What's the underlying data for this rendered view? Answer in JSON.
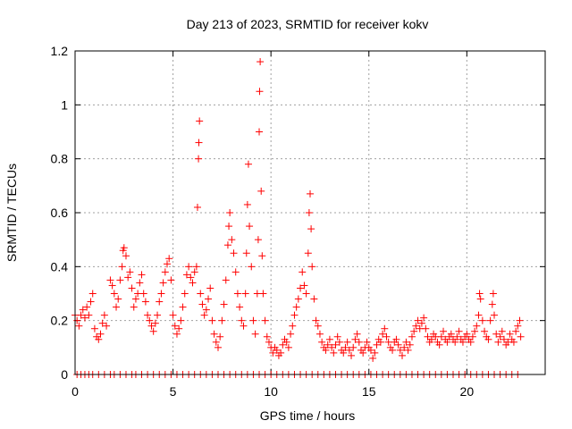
{
  "chart_data": {
    "type": "scatter",
    "title": "Day 213 of 2023, SRMTID for receiver kokv",
    "xlabel": "GPS time / hours",
    "ylabel": "SRMTID / TECUs",
    "xlim": [
      0,
      24
    ],
    "ylim": [
      0,
      1.2
    ],
    "xticks": [
      0,
      5,
      10,
      15,
      20
    ],
    "yticks": [
      0,
      0.2,
      0.4,
      0.6,
      0.8,
      1.0,
      1.2
    ],
    "xtick_labels": [
      "0",
      "5",
      "10",
      "15",
      "20"
    ],
    "ytick_labels": [
      "0",
      "0.2",
      "0.4",
      "0.6",
      "0.8",
      "1",
      "1.2"
    ],
    "grid": true,
    "marker": "+",
    "series": [
      {
        "name": "SRMTID",
        "color": "#ff0000",
        "points": [
          [
            0.0,
            0.22
          ],
          [
            0.1,
            0.2
          ],
          [
            0.2,
            0.18
          ],
          [
            0.3,
            0.22
          ],
          [
            0.4,
            0.24
          ],
          [
            0.5,
            0.21
          ],
          [
            0.6,
            0.25
          ],
          [
            0.7,
            0.22
          ],
          [
            0.8,
            0.27
          ],
          [
            0.9,
            0.3
          ],
          [
            1.0,
            0.17
          ],
          [
            1.1,
            0.14
          ],
          [
            1.2,
            0.13
          ],
          [
            1.3,
            0.15
          ],
          [
            1.4,
            0.19
          ],
          [
            1.5,
            0.22
          ],
          [
            1.6,
            0.18
          ],
          [
            1.8,
            0.35
          ],
          [
            1.9,
            0.33
          ],
          [
            2.0,
            0.3
          ],
          [
            2.1,
            0.25
          ],
          [
            2.2,
            0.28
          ],
          [
            2.3,
            0.35
          ],
          [
            2.4,
            0.4
          ],
          [
            2.45,
            0.46
          ],
          [
            2.5,
            0.47
          ],
          [
            2.6,
            0.44
          ],
          [
            2.7,
            0.36
          ],
          [
            2.8,
            0.38
          ],
          [
            2.9,
            0.32
          ],
          [
            3.0,
            0.25
          ],
          [
            3.1,
            0.28
          ],
          [
            3.2,
            0.3
          ],
          [
            3.3,
            0.34
          ],
          [
            3.4,
            0.37
          ],
          [
            3.5,
            0.3
          ],
          [
            3.6,
            0.27
          ],
          [
            3.7,
            0.22
          ],
          [
            3.8,
            0.2
          ],
          [
            3.9,
            0.18
          ],
          [
            4.0,
            0.16
          ],
          [
            4.1,
            0.19
          ],
          [
            4.2,
            0.22
          ],
          [
            4.3,
            0.27
          ],
          [
            4.4,
            0.3
          ],
          [
            4.5,
            0.34
          ],
          [
            4.6,
            0.38
          ],
          [
            4.7,
            0.41
          ],
          [
            4.8,
            0.43
          ],
          [
            4.9,
            0.35
          ],
          [
            5.0,
            0.22
          ],
          [
            5.1,
            0.18
          ],
          [
            5.2,
            0.15
          ],
          [
            5.3,
            0.17
          ],
          [
            5.4,
            0.2
          ],
          [
            5.5,
            0.25
          ],
          [
            5.6,
            0.3
          ],
          [
            5.7,
            0.37
          ],
          [
            5.8,
            0.4
          ],
          [
            5.9,
            0.36
          ],
          [
            6.0,
            0.34
          ],
          [
            6.1,
            0.38
          ],
          [
            6.2,
            0.4
          ],
          [
            6.25,
            0.62
          ],
          [
            6.3,
            0.8
          ],
          [
            6.32,
            0.86
          ],
          [
            6.35,
            0.94
          ],
          [
            6.4,
            0.3
          ],
          [
            6.5,
            0.26
          ],
          [
            6.6,
            0.22
          ],
          [
            6.7,
            0.24
          ],
          [
            6.8,
            0.28
          ],
          [
            6.9,
            0.32
          ],
          [
            7.0,
            0.2
          ],
          [
            7.1,
            0.15
          ],
          [
            7.2,
            0.12
          ],
          [
            7.3,
            0.1
          ],
          [
            7.4,
            0.14
          ],
          [
            7.5,
            0.2
          ],
          [
            7.6,
            0.26
          ],
          [
            7.7,
            0.35
          ],
          [
            7.8,
            0.48
          ],
          [
            7.85,
            0.55
          ],
          [
            7.9,
            0.6
          ],
          [
            8.0,
            0.5
          ],
          [
            8.1,
            0.45
          ],
          [
            8.2,
            0.38
          ],
          [
            8.3,
            0.3
          ],
          [
            8.4,
            0.25
          ],
          [
            8.5,
            0.2
          ],
          [
            8.6,
            0.18
          ],
          [
            8.7,
            0.3
          ],
          [
            8.75,
            0.45
          ],
          [
            8.8,
            0.63
          ],
          [
            8.85,
            0.78
          ],
          [
            8.9,
            0.55
          ],
          [
            9.0,
            0.4
          ],
          [
            9.1,
            0.2
          ],
          [
            9.2,
            0.15
          ],
          [
            9.3,
            0.3
          ],
          [
            9.35,
            0.5
          ],
          [
            9.4,
            0.9
          ],
          [
            9.42,
            1.05
          ],
          [
            9.45,
            1.16
          ],
          [
            9.5,
            0.68
          ],
          [
            9.55,
            0.44
          ],
          [
            9.6,
            0.3
          ],
          [
            9.7,
            0.2
          ],
          [
            9.8,
            0.14
          ],
          [
            9.9,
            0.12
          ],
          [
            10.0,
            0.1
          ],
          [
            10.1,
            0.08
          ],
          [
            10.2,
            0.1
          ],
          [
            10.3,
            0.09
          ],
          [
            10.4,
            0.07
          ],
          [
            10.5,
            0.08
          ],
          [
            10.6,
            0.11
          ],
          [
            10.7,
            0.13
          ],
          [
            10.8,
            0.12
          ],
          [
            10.9,
            0.1
          ],
          [
            11.0,
            0.15
          ],
          [
            11.1,
            0.18
          ],
          [
            11.2,
            0.22
          ],
          [
            11.3,
            0.25
          ],
          [
            11.4,
            0.28
          ],
          [
            11.5,
            0.32
          ],
          [
            11.6,
            0.38
          ],
          [
            11.7,
            0.33
          ],
          [
            11.8,
            0.3
          ],
          [
            11.9,
            0.45
          ],
          [
            11.95,
            0.6
          ],
          [
            12.0,
            0.67
          ],
          [
            12.05,
            0.54
          ],
          [
            12.1,
            0.4
          ],
          [
            12.2,
            0.28
          ],
          [
            12.3,
            0.2
          ],
          [
            12.4,
            0.18
          ],
          [
            12.5,
            0.15
          ],
          [
            12.6,
            0.12
          ],
          [
            12.7,
            0.1
          ],
          [
            12.8,
            0.09
          ],
          [
            12.9,
            0.11
          ],
          [
            13.0,
            0.13
          ],
          [
            13.1,
            0.1
          ],
          [
            13.2,
            0.08
          ],
          [
            13.3,
            0.11
          ],
          [
            13.4,
            0.14
          ],
          [
            13.5,
            0.12
          ],
          [
            13.6,
            0.09
          ],
          [
            13.7,
            0.08
          ],
          [
            13.8,
            0.1
          ],
          [
            13.9,
            0.12
          ],
          [
            14.0,
            0.09
          ],
          [
            14.1,
            0.07
          ],
          [
            14.2,
            0.1
          ],
          [
            14.3,
            0.13
          ],
          [
            14.4,
            0.15
          ],
          [
            14.5,
            0.12
          ],
          [
            14.6,
            0.09
          ],
          [
            14.7,
            0.08
          ],
          [
            14.8,
            0.1
          ],
          [
            14.9,
            0.12
          ],
          [
            15.0,
            0.1
          ],
          [
            15.1,
            0.09
          ],
          [
            15.2,
            0.06
          ],
          [
            15.3,
            0.08
          ],
          [
            15.4,
            0.11
          ],
          [
            15.5,
            0.13
          ],
          [
            15.6,
            0.12
          ],
          [
            15.7,
            0.15
          ],
          [
            15.8,
            0.17
          ],
          [
            15.9,
            0.14
          ],
          [
            16.0,
            0.12
          ],
          [
            16.1,
            0.1
          ],
          [
            16.2,
            0.09
          ],
          [
            16.3,
            0.12
          ],
          [
            16.4,
            0.13
          ],
          [
            16.5,
            0.11
          ],
          [
            16.6,
            0.09
          ],
          [
            16.7,
            0.07
          ],
          [
            16.8,
            0.1
          ],
          [
            16.9,
            0.12
          ],
          [
            17.0,
            0.09
          ],
          [
            17.1,
            0.11
          ],
          [
            17.2,
            0.14
          ],
          [
            17.3,
            0.16
          ],
          [
            17.4,
            0.18
          ],
          [
            17.5,
            0.2
          ],
          [
            17.6,
            0.17
          ],
          [
            17.7,
            0.19
          ],
          [
            17.8,
            0.21
          ],
          [
            17.9,
            0.17
          ],
          [
            18.0,
            0.14
          ],
          [
            18.1,
            0.12
          ],
          [
            18.2,
            0.13
          ],
          [
            18.3,
            0.15
          ],
          [
            18.4,
            0.14
          ],
          [
            18.5,
            0.12
          ],
          [
            18.6,
            0.11
          ],
          [
            18.7,
            0.14
          ],
          [
            18.8,
            0.16
          ],
          [
            18.9,
            0.13
          ],
          [
            19.0,
            0.12
          ],
          [
            19.1,
            0.14
          ],
          [
            19.2,
            0.15
          ],
          [
            19.3,
            0.13
          ],
          [
            19.4,
            0.12
          ],
          [
            19.5,
            0.14
          ],
          [
            19.6,
            0.16
          ],
          [
            19.7,
            0.13
          ],
          [
            19.8,
            0.12
          ],
          [
            19.9,
            0.14
          ],
          [
            20.0,
            0.15
          ],
          [
            20.1,
            0.13
          ],
          [
            20.2,
            0.12
          ],
          [
            20.3,
            0.14
          ],
          [
            20.4,
            0.16
          ],
          [
            20.5,
            0.18
          ],
          [
            20.6,
            0.22
          ],
          [
            20.65,
            0.3
          ],
          [
            20.7,
            0.28
          ],
          [
            20.8,
            0.2
          ],
          [
            20.9,
            0.16
          ],
          [
            21.0,
            0.14
          ],
          [
            21.1,
            0.13
          ],
          [
            21.2,
            0.2
          ],
          [
            21.3,
            0.26
          ],
          [
            21.35,
            0.3
          ],
          [
            21.4,
            0.22
          ],
          [
            21.5,
            0.15
          ],
          [
            21.6,
            0.12
          ],
          [
            21.7,
            0.14
          ],
          [
            21.8,
            0.16
          ],
          [
            21.9,
            0.13
          ],
          [
            22.0,
            0.11
          ],
          [
            22.1,
            0.12
          ],
          [
            22.2,
            0.15
          ],
          [
            22.3,
            0.13
          ],
          [
            22.4,
            0.12
          ],
          [
            22.5,
            0.16
          ],
          [
            22.6,
            0.18
          ],
          [
            22.7,
            0.2
          ],
          [
            22.75,
            0.14
          ]
        ],
        "zero_points": [
          0.1,
          0.3,
          0.5,
          0.7,
          0.9,
          1.2,
          1.5,
          1.8,
          2.0,
          2.3,
          2.6,
          2.9,
          3.1,
          3.4,
          3.7,
          4.0,
          4.3,
          4.6,
          4.9,
          5.2,
          5.5,
          5.8,
          6.1,
          6.4,
          6.7,
          7.0,
          7.3,
          7.6,
          7.9,
          8.2,
          8.5,
          8.8,
          9.1,
          9.4,
          9.7,
          10.0,
          10.3,
          10.6,
          10.9,
          11.2,
          11.5,
          11.8,
          12.1,
          12.4,
          12.7,
          13.0,
          13.3,
          13.6,
          13.9,
          14.2,
          14.5,
          14.8,
          15.1,
          15.4,
          15.7,
          16.0,
          16.3,
          16.6,
          16.9,
          17.2,
          17.5,
          17.8,
          18.1,
          18.4,
          18.7,
          19.0,
          19.3,
          19.6,
          19.9,
          20.2,
          20.5,
          20.8,
          21.1,
          21.4,
          21.7,
          22.0,
          22.3,
          22.6
        ]
      }
    ]
  }
}
